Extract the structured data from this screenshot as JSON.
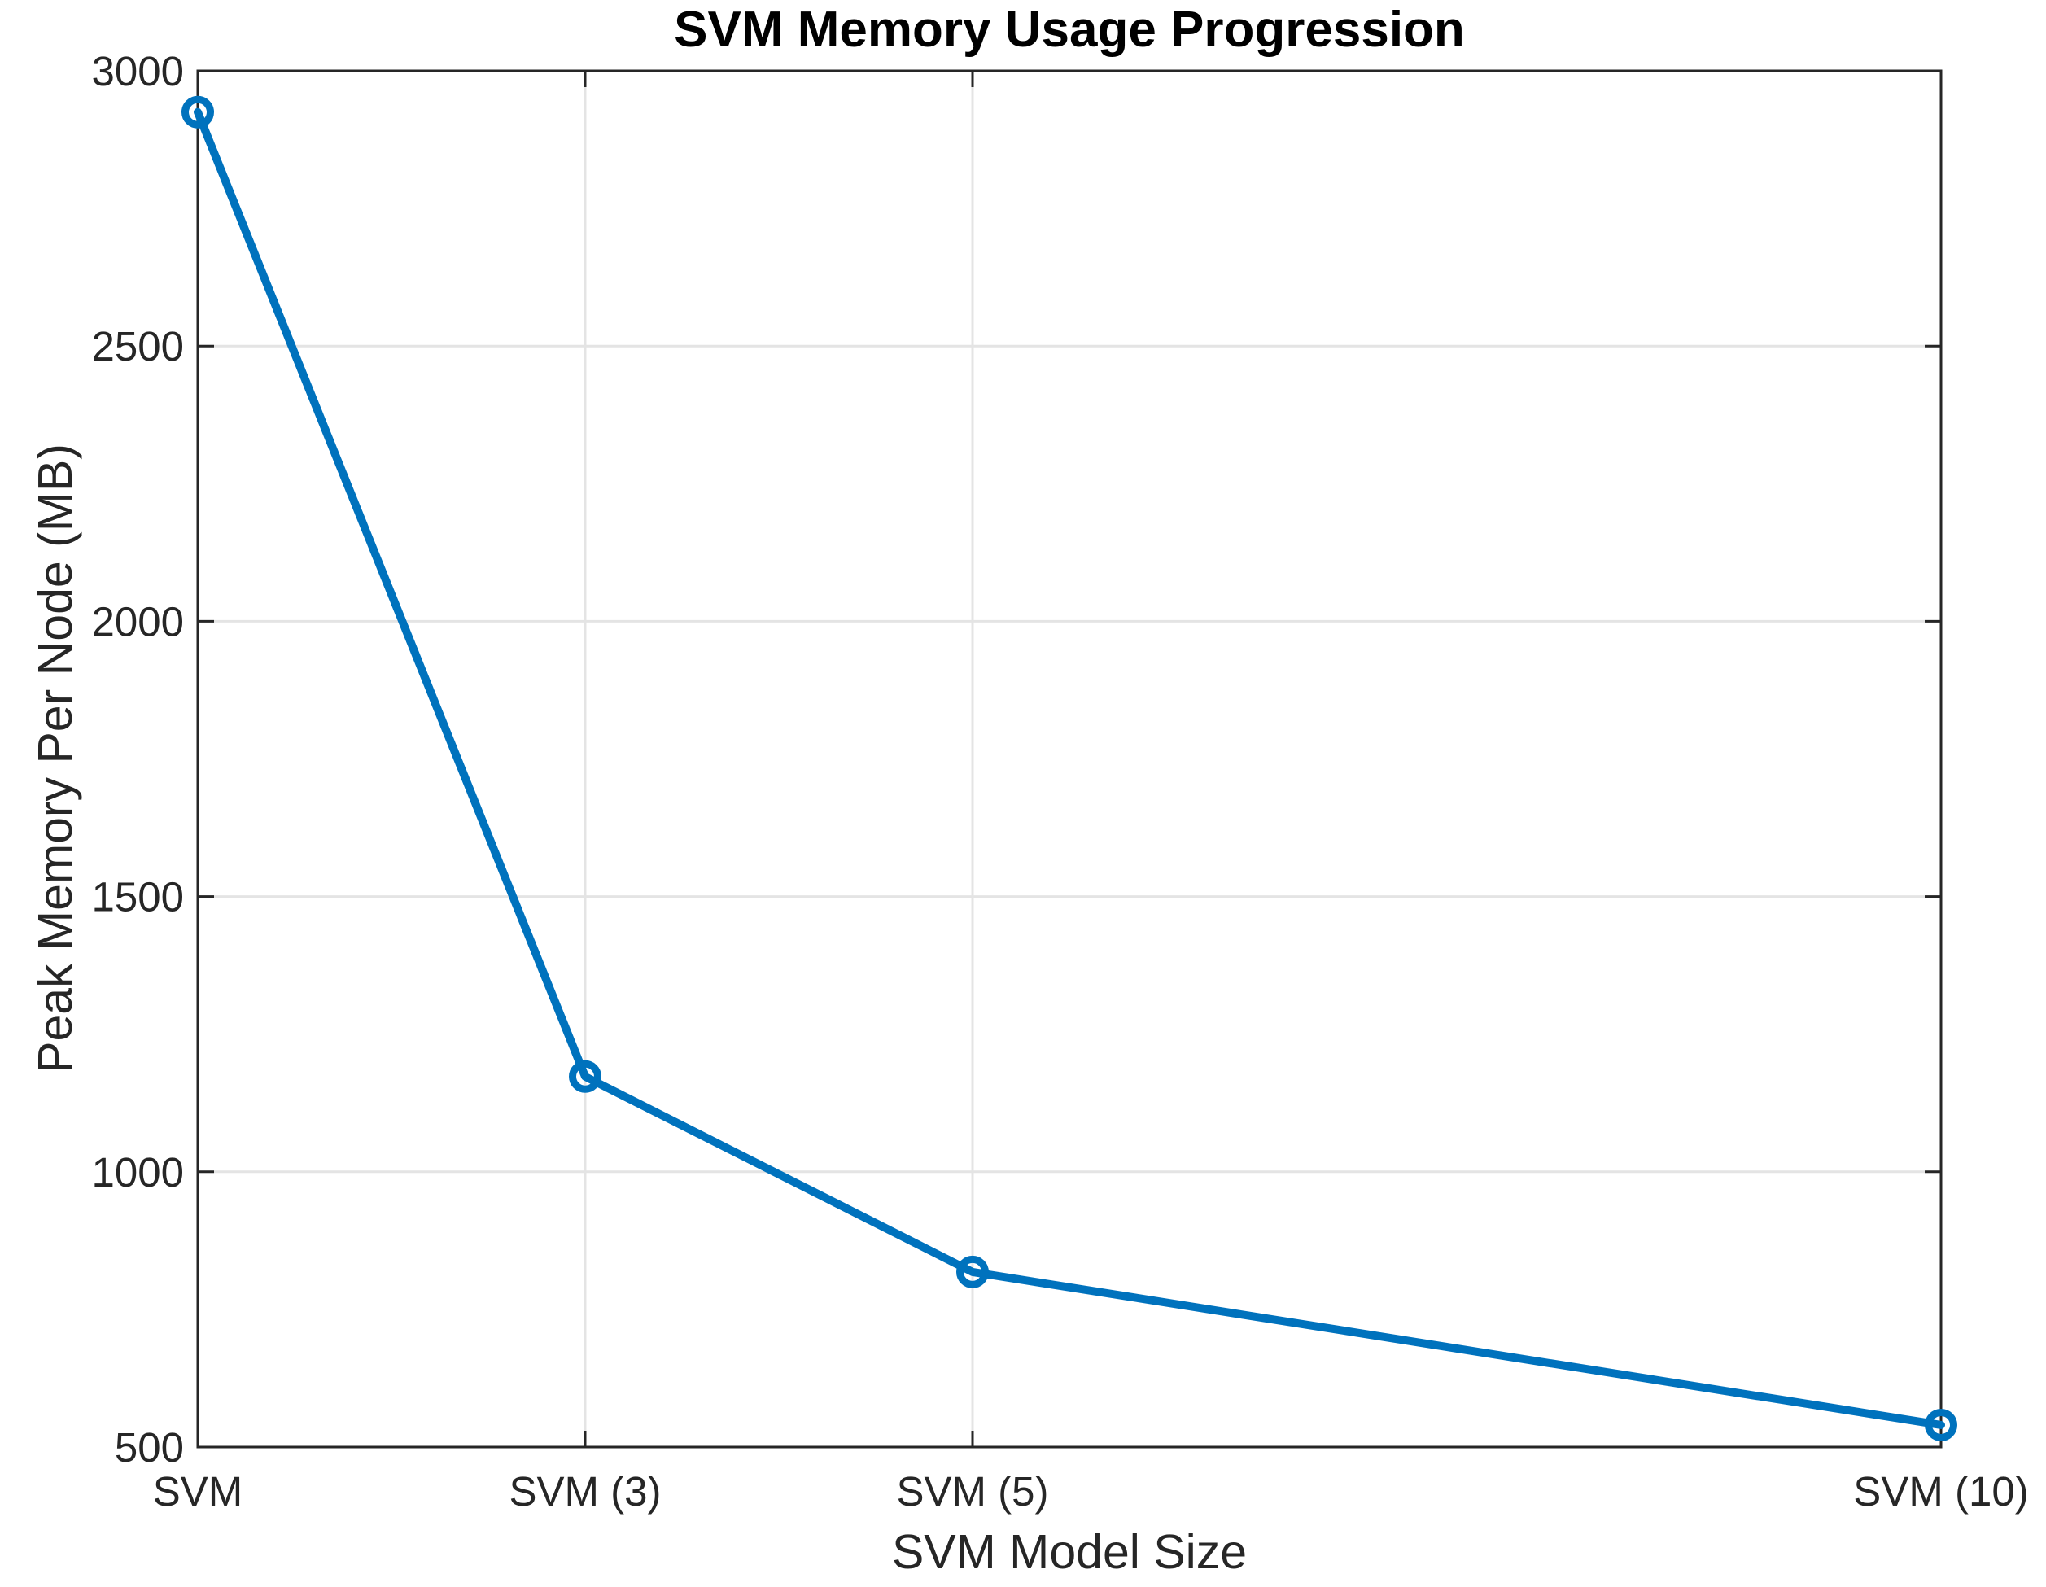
{
  "chart_data": {
    "type": "line",
    "title": "SVM Memory Usage Progression",
    "xlabel": "SVM Model Size",
    "ylabel": "Peak Memory Per Node (MB)",
    "categories": [
      "SVM",
      "SVM (3)",
      "SVM (5)",
      "SVM (10)"
    ],
    "x": [
      1,
      3,
      5,
      10
    ],
    "values": [
      2925,
      1173,
      818,
      540
    ],
    "xlim": [
      1,
      10
    ],
    "ylim": [
      500,
      3000
    ],
    "yticks": [
      500,
      1000,
      1500,
      2000,
      2500,
      3000
    ],
    "grid": true,
    "legend_position": "none",
    "line_color": "#0072BD",
    "axis_color": "#262626",
    "grid_color": "#E4E4E4",
    "background_color": "#FFFFFF",
    "marker": "open-circle"
  }
}
